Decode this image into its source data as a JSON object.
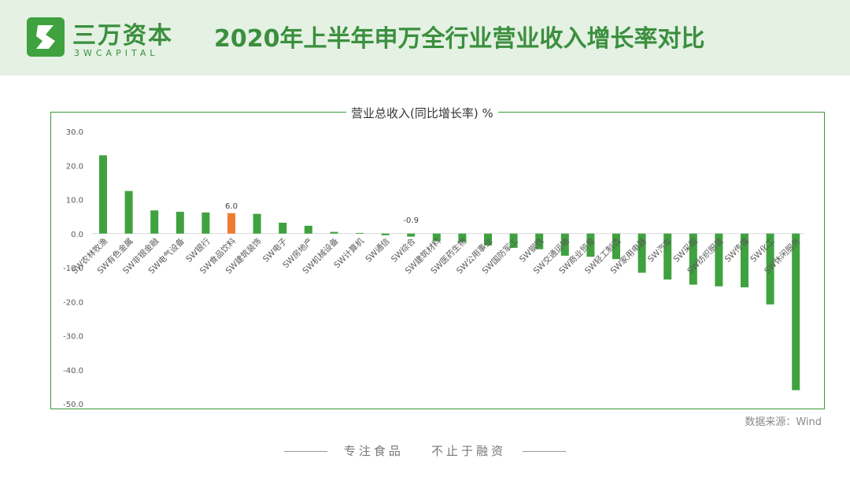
{
  "header": {
    "logo_cn": "三万资本",
    "logo_en": "3WCAPITAL",
    "title": "2020年上半年申万全行业营业收入增长率对比"
  },
  "colors": {
    "bar": "#3fa23f",
    "highlight": "#ed7d31",
    "brand": "#3b8f3e"
  },
  "chart_data": {
    "type": "bar",
    "title": "营业总收入(同比增长率) %",
    "ylim": [
      -50,
      30
    ],
    "yticks": [
      "30.0",
      "20.0",
      "10.0",
      "0.0",
      "-10.0",
      "-20.0",
      "-30.0",
      "-40.0",
      "-50.0"
    ],
    "categories": [
      "SW农林牧渔",
      "SW有色金属",
      "SW非银金融",
      "SW电气设备",
      "SW银行",
      "SW食品饮料",
      "SW建筑装饰",
      "SW电子",
      "SW房地产",
      "SW机械设备",
      "SW计算机",
      "SW通信",
      "SW综合",
      "SW建筑材料",
      "SW医药生物",
      "SW公用事业",
      "SW国防军工",
      "SW钢铁",
      "SW交通运输",
      "SW商业贸易",
      "SW轻工制造",
      "SW家用电器",
      "SW汽车",
      "SW采掘",
      "SW纺织服装",
      "SW传媒",
      "SW化工",
      "SW休闲服务"
    ],
    "values": [
      23.0,
      12.5,
      6.8,
      6.4,
      6.2,
      6.0,
      5.8,
      3.2,
      2.3,
      0.5,
      0.2,
      -0.5,
      -0.9,
      -2.2,
      -2.5,
      -3.5,
      -4.2,
      -4.6,
      -6.5,
      -6.8,
      -7.5,
      -11.5,
      -13.5,
      -15.0,
      -15.5,
      -15.8,
      -20.8,
      -46.0
    ],
    "highlight_index": 5,
    "data_labels": [
      {
        "index": 5,
        "text": "6.0"
      },
      {
        "index": 12,
        "text": "-0.9"
      }
    ],
    "grid": false,
    "legend": "none"
  },
  "source": "数据来源：Wind",
  "footer": {
    "slogan1": "专注食品",
    "slogan2": "不止于融资"
  }
}
